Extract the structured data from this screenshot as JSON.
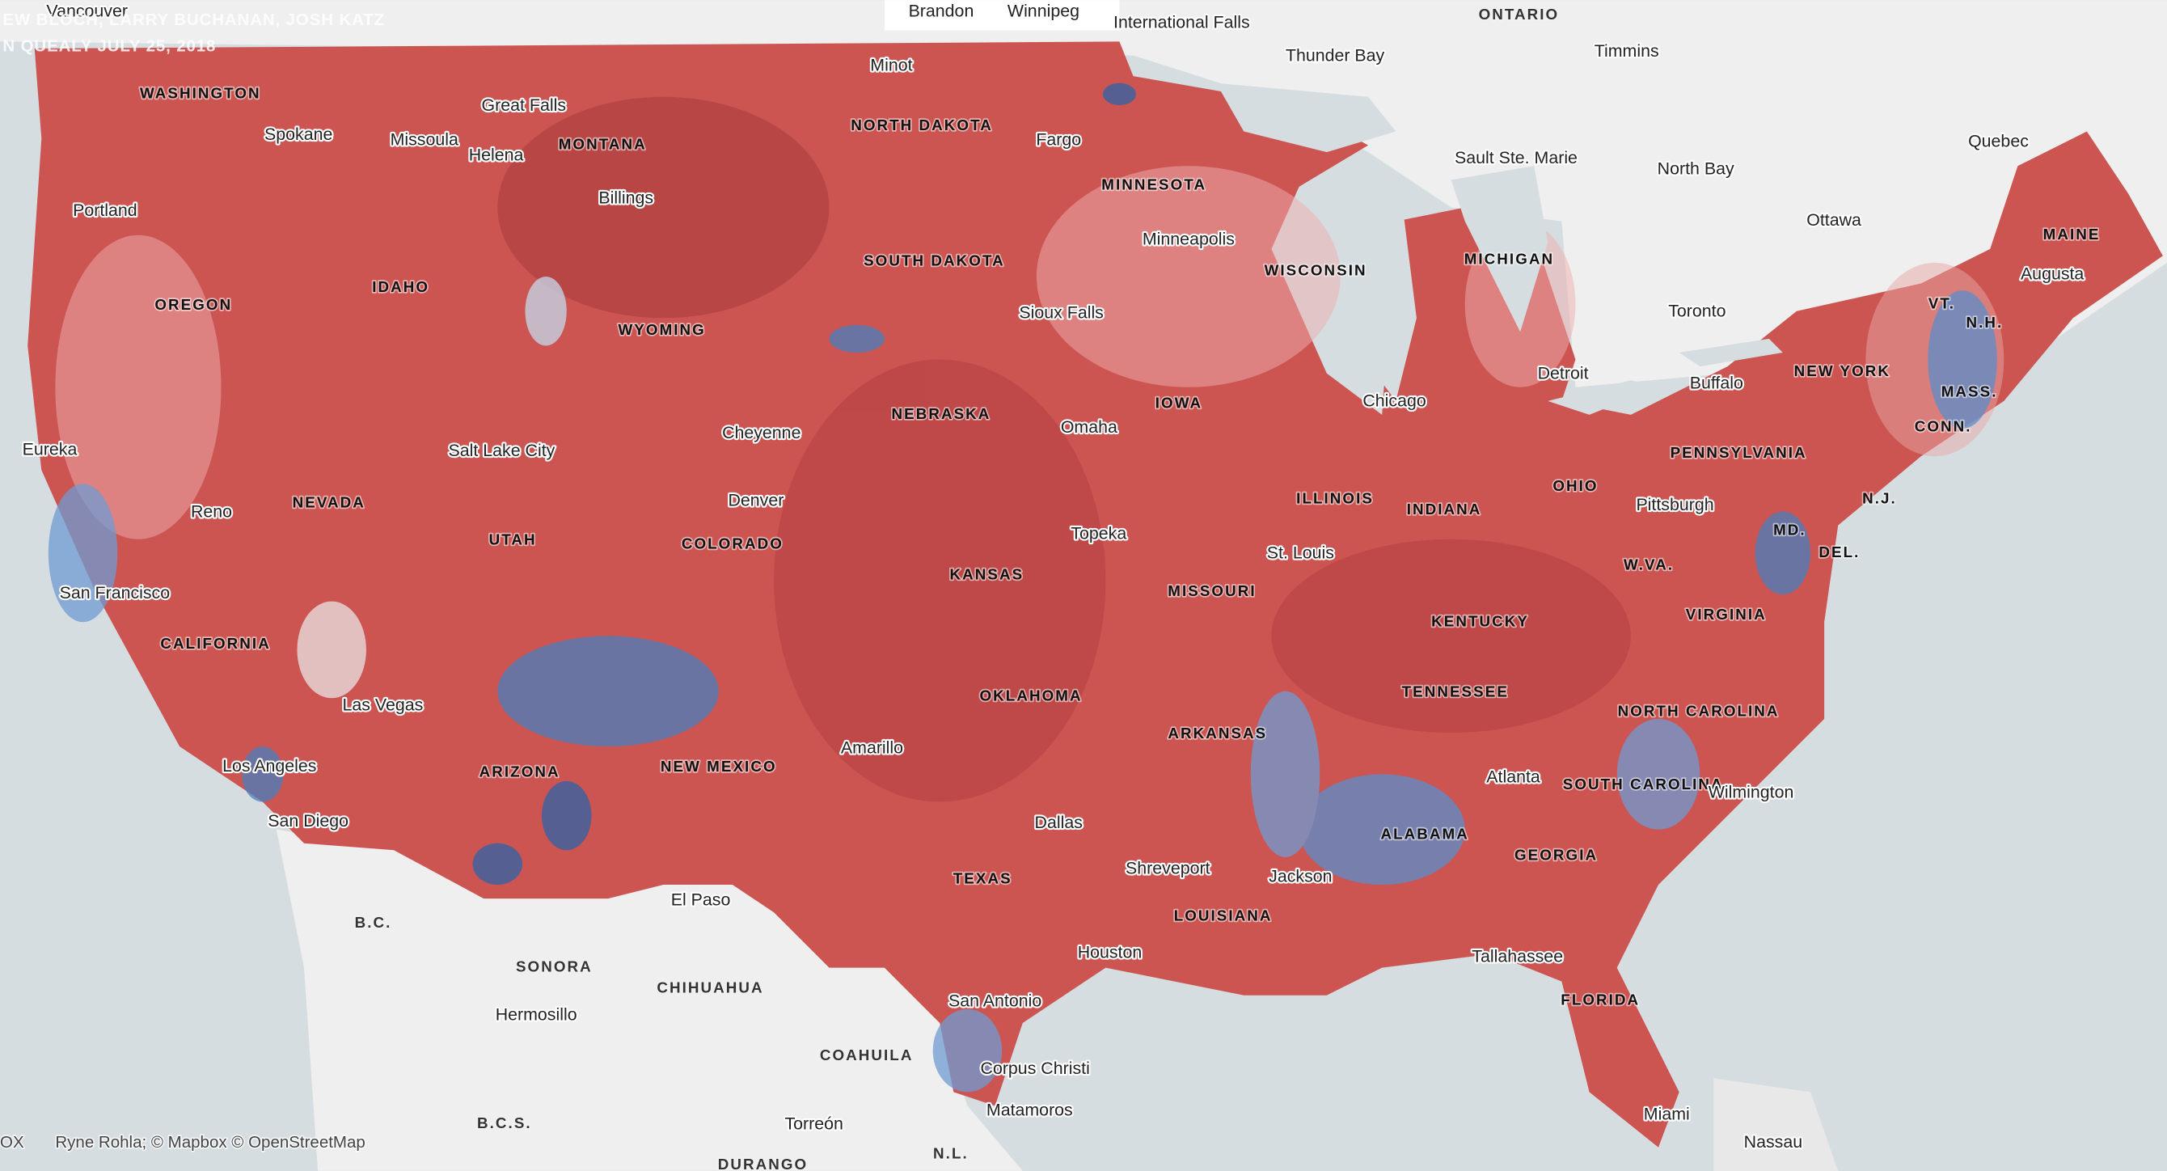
{
  "byline": [
    "EW BLOCH, LARRY BUCHANAN, JOSH KATZ",
    "N QUEALY JULY 25, 2018"
  ],
  "attribution": [
    "OX",
    "Ryne Rohla; © Mapbox © OpenStreetMap"
  ],
  "states": [
    "WASHINGTON",
    "OREGON",
    "IDAHO",
    "MONTANA",
    "WYOMING",
    "NORTH DAKOTA",
    "SOUTH DAKOTA",
    "MINNESOTA",
    "WISCONSIN",
    "MICHIGAN",
    "NEVADA",
    "UTAH",
    "COLORADO",
    "NEBRASKA",
    "IOWA",
    "ILLINOIS",
    "INDIANA",
    "OHIO",
    "PENNSYLVANIA",
    "NEW YORK",
    "CALIFORNIA",
    "ARIZONA",
    "NEW MEXICO",
    "KANSAS",
    "MISSOURI",
    "KENTUCKY",
    "W.VA.",
    "VIRGINIA",
    "TENNESSEE",
    "NORTH CAROLINA",
    "OKLAHOMA",
    "ARKANSAS",
    "TEXAS",
    "LOUISIANA",
    "ALABAMA",
    "GEORGIA",
    "SOUTH CAROLINA",
    "FLORIDA",
    "MAINE",
    "VT.",
    "N.H.",
    "MASS.",
    "CONN.",
    "N.J.",
    "MD.",
    "DEL."
  ],
  "regions": [
    "ONTARIO",
    "B.C.",
    "SONORA",
    "CHIHUAHUA",
    "COAHUILA",
    "B.C.S.",
    "DURANGO",
    "N.L."
  ],
  "cities": [
    "Vancouver",
    "Brandon",
    "Winnipeg",
    "International Falls",
    "Thunder Bay",
    "Timmins",
    "Minot",
    "Great Falls",
    "Spokane",
    "Missoula",
    "Helena",
    "Fargo",
    "Sault Ste. Marie",
    "North Bay",
    "Quebec",
    "Ottawa",
    "Portland",
    "Billings",
    "Minneapolis",
    "Augusta",
    "Toronto",
    "Sioux Falls",
    "Detroit",
    "Buffalo",
    "Chicago",
    "Omaha",
    "Cheyenne",
    "Salt Lake City",
    "Eureka",
    "Denver",
    "Pittsburgh",
    "Reno",
    "Topeka",
    "St. Louis",
    "San Francisco",
    "Las Vegas",
    "Amarillo",
    "Atlanta",
    "Los Angeles",
    "Wilmington",
    "San Diego",
    "Dallas",
    "Shreveport",
    "Jackson",
    "El Paso",
    "Houston",
    "Tallahassee",
    "San Antonio",
    "Hermosillo",
    "Corpus Christi",
    "Matamoros",
    "Miami",
    "Torreón",
    "Nassau"
  ]
}
